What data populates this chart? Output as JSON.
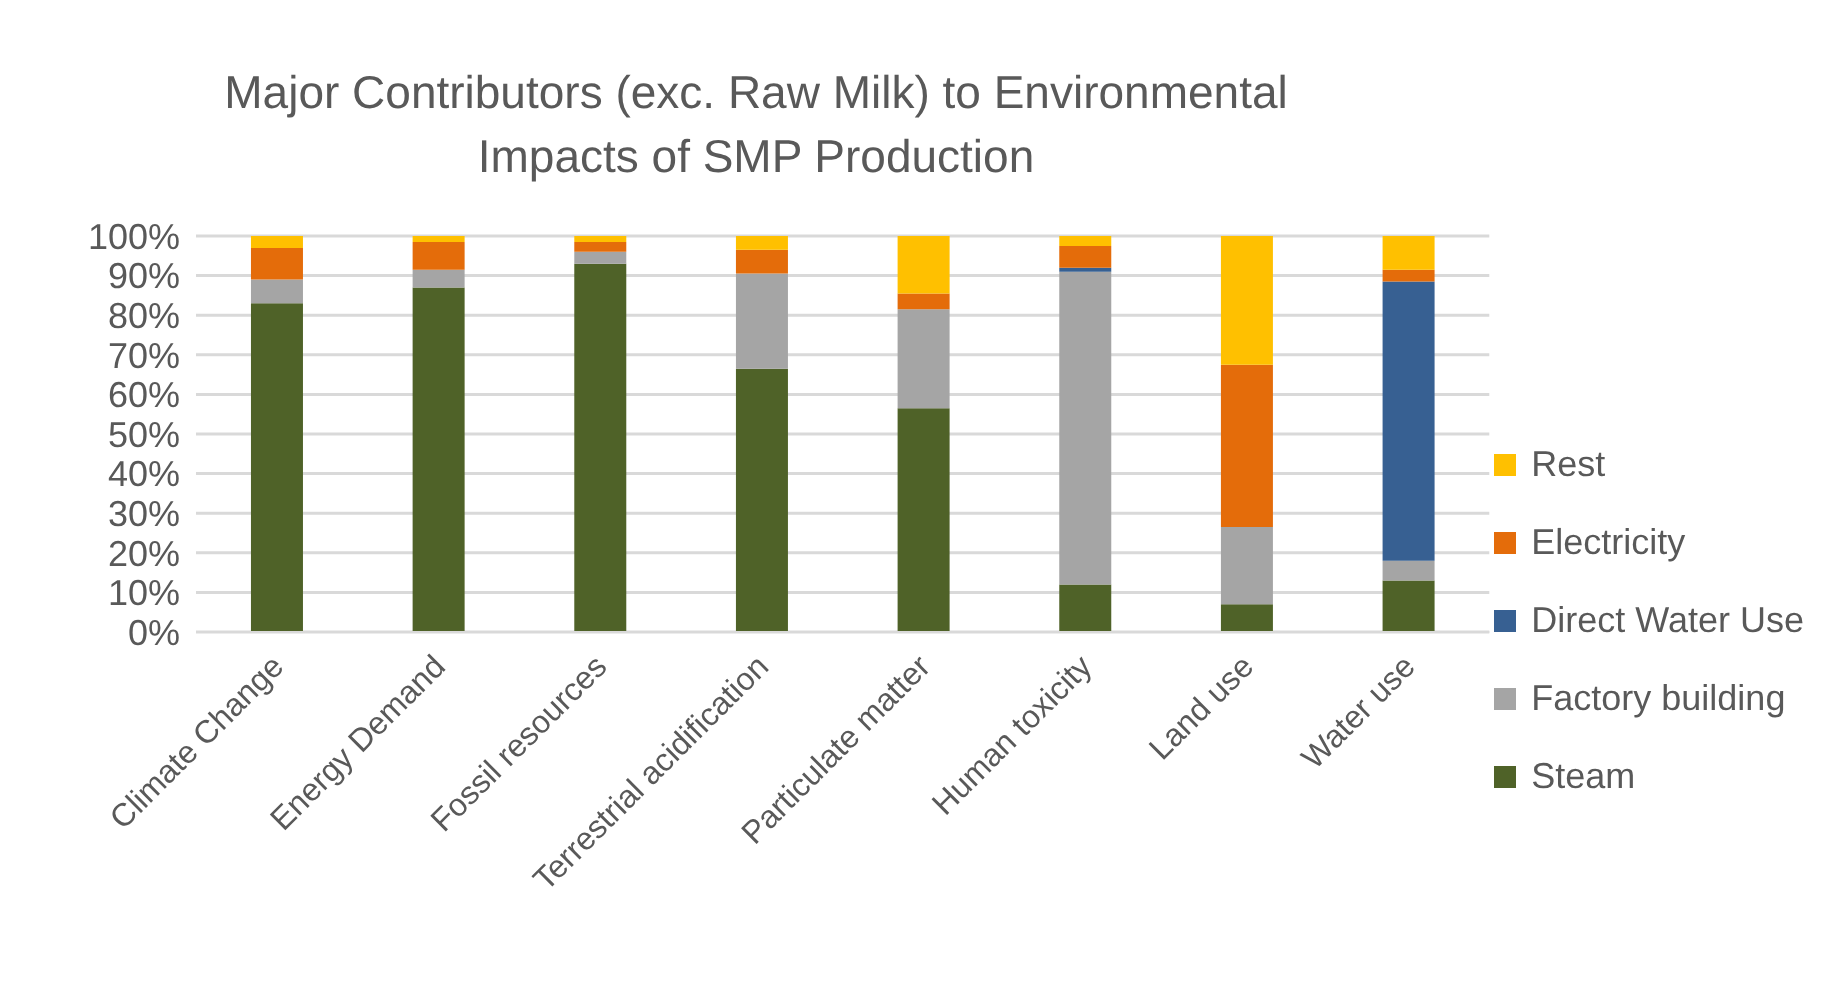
{
  "chart_data": {
    "type": "bar",
    "title": "Major Contributors (exc. Raw Milk) to Environmental Impacts of SMP Production",
    "categories": [
      "Climate Change",
      "Energy Demand",
      "Fossil resources",
      "Terrestrial acidification",
      "Particulate matter",
      "Human toxicity",
      "Land use",
      "Water use"
    ],
    "stacked": true,
    "series": [
      {
        "name": "Steam",
        "color": "#4f6228",
        "values": [
          83,
          87,
          93,
          66.5,
          56.5,
          12,
          7,
          13
        ]
      },
      {
        "name": "Factory building",
        "color": "#a5a5a5",
        "values": [
          6,
          4.5,
          3,
          24,
          25,
          79,
          19.5,
          5
        ]
      },
      {
        "name": "Direct Water Use",
        "color": "#376092",
        "values": [
          0,
          0,
          0,
          0,
          0,
          1,
          0,
          70.5
        ]
      },
      {
        "name": "Electricity",
        "color": "#e46c0a",
        "values": [
          8,
          7,
          2.5,
          6,
          4,
          5.5,
          41,
          3
        ]
      },
      {
        "name": "Rest",
        "color": "#ffc000",
        "values": [
          3,
          1.5,
          1.5,
          3.5,
          14.5,
          2.5,
          32.5,
          8.5
        ]
      }
    ],
    "ylim": [
      0,
      100
    ],
    "yticks": [
      {
        "value": 0,
        "label": "0%"
      },
      {
        "value": 10,
        "label": "10%"
      },
      {
        "value": 20,
        "label": "20%"
      },
      {
        "value": 30,
        "label": "30%"
      },
      {
        "value": 40,
        "label": "40%"
      },
      {
        "value": 50,
        "label": "50%"
      },
      {
        "value": 60,
        "label": "60%"
      },
      {
        "value": 70,
        "label": "70%"
      },
      {
        "value": 80,
        "label": "80%"
      },
      {
        "value": 90,
        "label": "90%"
      },
      {
        "value": 100,
        "label": "100%"
      }
    ],
    "grid": "y",
    "legend": "right"
  }
}
